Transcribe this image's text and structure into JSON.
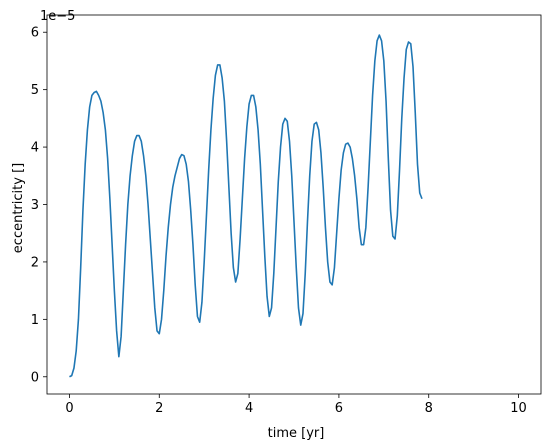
{
  "chart_data": {
    "type": "line",
    "title": "",
    "xlabel": "time [yr]",
    "ylabel": "eccentricity []",
    "y_offset_label": "1e−5",
    "xlim": [
      -0.5,
      10.5
    ],
    "ylim": [
      -0.3,
      6.3
    ],
    "x_ticks": [
      0,
      2,
      4,
      6,
      8,
      10
    ],
    "x_tick_labels": [
      "0",
      "2",
      "4",
      "6",
      "8",
      "10"
    ],
    "y_ticks": [
      0,
      1,
      2,
      3,
      4,
      5,
      6
    ],
    "y_tick_labels": [
      "0",
      "1",
      "2",
      "3",
      "4",
      "5",
      "6"
    ],
    "grid": false,
    "legend": "none",
    "series": [
      {
        "color": "#1f77b4",
        "points": [
          [
            0.0,
            0.0
          ],
          [
            0.05,
            0.02
          ],
          [
            0.1,
            0.15
          ],
          [
            0.15,
            0.45
          ],
          [
            0.2,
            1.0
          ],
          [
            0.25,
            1.9
          ],
          [
            0.3,
            2.9
          ],
          [
            0.35,
            3.7
          ],
          [
            0.4,
            4.3
          ],
          [
            0.45,
            4.7
          ],
          [
            0.5,
            4.9
          ],
          [
            0.55,
            4.95
          ],
          [
            0.6,
            4.97
          ],
          [
            0.65,
            4.9
          ],
          [
            0.7,
            4.8
          ],
          [
            0.75,
            4.6
          ],
          [
            0.8,
            4.3
          ],
          [
            0.85,
            3.8
          ],
          [
            0.9,
            3.1
          ],
          [
            0.95,
            2.3
          ],
          [
            1.0,
            1.5
          ],
          [
            1.05,
            0.8
          ],
          [
            1.1,
            0.35
          ],
          [
            1.15,
            0.7
          ],
          [
            1.2,
            1.5
          ],
          [
            1.25,
            2.3
          ],
          [
            1.3,
            3.0
          ],
          [
            1.35,
            3.5
          ],
          [
            1.4,
            3.85
          ],
          [
            1.45,
            4.1
          ],
          [
            1.5,
            4.2
          ],
          [
            1.55,
            4.2
          ],
          [
            1.6,
            4.1
          ],
          [
            1.65,
            3.85
          ],
          [
            1.7,
            3.5
          ],
          [
            1.75,
            3.0
          ],
          [
            1.8,
            2.4
          ],
          [
            1.85,
            1.8
          ],
          [
            1.9,
            1.2
          ],
          [
            1.95,
            0.8
          ],
          [
            2.0,
            0.75
          ],
          [
            2.05,
            1.0
          ],
          [
            2.1,
            1.5
          ],
          [
            2.15,
            2.1
          ],
          [
            2.2,
            2.6
          ],
          [
            2.25,
            3.0
          ],
          [
            2.3,
            3.3
          ],
          [
            2.35,
            3.5
          ],
          [
            2.4,
            3.65
          ],
          [
            2.45,
            3.8
          ],
          [
            2.5,
            3.87
          ],
          [
            2.55,
            3.85
          ],
          [
            2.6,
            3.7
          ],
          [
            2.65,
            3.4
          ],
          [
            2.7,
            2.9
          ],
          [
            2.75,
            2.3
          ],
          [
            2.8,
            1.6
          ],
          [
            2.85,
            1.05
          ],
          [
            2.9,
            0.95
          ],
          [
            2.95,
            1.3
          ],
          [
            3.0,
            2.0
          ],
          [
            3.05,
            2.8
          ],
          [
            3.1,
            3.6
          ],
          [
            3.15,
            4.3
          ],
          [
            3.2,
            4.85
          ],
          [
            3.25,
            5.25
          ],
          [
            3.3,
            5.43
          ],
          [
            3.35,
            5.43
          ],
          [
            3.4,
            5.2
          ],
          [
            3.45,
            4.8
          ],
          [
            3.5,
            4.1
          ],
          [
            3.55,
            3.3
          ],
          [
            3.6,
            2.5
          ],
          [
            3.65,
            1.9
          ],
          [
            3.7,
            1.65
          ],
          [
            3.75,
            1.8
          ],
          [
            3.8,
            2.4
          ],
          [
            3.85,
            3.1
          ],
          [
            3.9,
            3.8
          ],
          [
            3.95,
            4.35
          ],
          [
            4.0,
            4.75
          ],
          [
            4.05,
            4.9
          ],
          [
            4.1,
            4.9
          ],
          [
            4.15,
            4.7
          ],
          [
            4.2,
            4.3
          ],
          [
            4.25,
            3.7
          ],
          [
            4.3,
            2.9
          ],
          [
            4.35,
            2.1
          ],
          [
            4.4,
            1.4
          ],
          [
            4.45,
            1.05
          ],
          [
            4.5,
            1.2
          ],
          [
            4.55,
            1.8
          ],
          [
            4.6,
            2.6
          ],
          [
            4.65,
            3.4
          ],
          [
            4.7,
            4.0
          ],
          [
            4.75,
            4.4
          ],
          [
            4.8,
            4.5
          ],
          [
            4.85,
            4.45
          ],
          [
            4.9,
            4.1
          ],
          [
            4.95,
            3.5
          ],
          [
            5.0,
            2.7
          ],
          [
            5.05,
            1.9
          ],
          [
            5.1,
            1.2
          ],
          [
            5.15,
            0.9
          ],
          [
            5.2,
            1.1
          ],
          [
            5.25,
            1.8
          ],
          [
            5.3,
            2.7
          ],
          [
            5.35,
            3.5
          ],
          [
            5.4,
            4.1
          ],
          [
            5.45,
            4.4
          ],
          [
            5.5,
            4.43
          ],
          [
            5.55,
            4.3
          ],
          [
            5.6,
            3.9
          ],
          [
            5.65,
            3.3
          ],
          [
            5.7,
            2.6
          ],
          [
            5.75,
            2.0
          ],
          [
            5.8,
            1.65
          ],
          [
            5.85,
            1.6
          ],
          [
            5.9,
            1.9
          ],
          [
            5.95,
            2.5
          ],
          [
            6.0,
            3.1
          ],
          [
            6.05,
            3.6
          ],
          [
            6.1,
            3.9
          ],
          [
            6.15,
            4.05
          ],
          [
            6.2,
            4.07
          ],
          [
            6.25,
            4.0
          ],
          [
            6.3,
            3.8
          ],
          [
            6.35,
            3.5
          ],
          [
            6.4,
            3.1
          ],
          [
            6.45,
            2.6
          ],
          [
            6.5,
            2.3
          ],
          [
            6.55,
            2.3
          ],
          [
            6.6,
            2.6
          ],
          [
            6.65,
            3.3
          ],
          [
            6.7,
            4.1
          ],
          [
            6.75,
            4.9
          ],
          [
            6.8,
            5.5
          ],
          [
            6.85,
            5.85
          ],
          [
            6.9,
            5.95
          ],
          [
            6.95,
            5.85
          ],
          [
            7.0,
            5.5
          ],
          [
            7.05,
            4.8
          ],
          [
            7.1,
            3.8
          ],
          [
            7.15,
            2.9
          ],
          [
            7.2,
            2.45
          ],
          [
            7.25,
            2.4
          ],
          [
            7.3,
            2.8
          ],
          [
            7.35,
            3.6
          ],
          [
            7.4,
            4.5
          ],
          [
            7.45,
            5.2
          ],
          [
            7.5,
            5.7
          ],
          [
            7.55,
            5.83
          ],
          [
            7.6,
            5.8
          ],
          [
            7.65,
            5.4
          ],
          [
            7.7,
            4.6
          ],
          [
            7.75,
            3.7
          ],
          [
            7.8,
            3.2
          ],
          [
            7.85,
            3.1
          ]
        ]
      }
    ]
  }
}
